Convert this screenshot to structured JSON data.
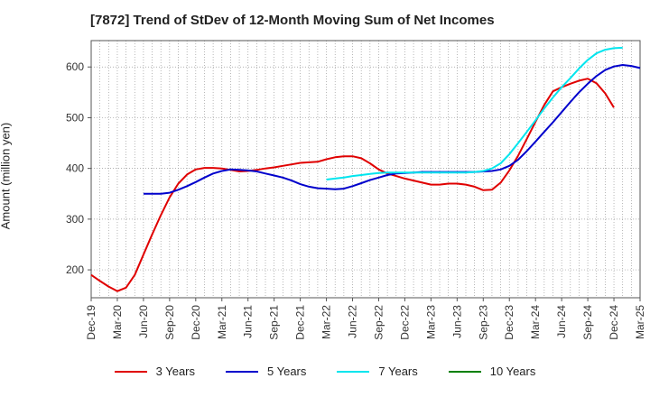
{
  "chart_data": {
    "type": "line",
    "title": "[7872]  Trend of StDev of 12-Month Moving Sum of Net Incomes",
    "ylabel": "Amount (million yen)",
    "xlabel": "",
    "ylim": [
      145,
      652
    ],
    "yticks": [
      200,
      300,
      400,
      500,
      600
    ],
    "x_tick_labels": [
      "Dec-19",
      "Mar-20",
      "Jun-20",
      "Sep-20",
      "Dec-20",
      "Mar-21",
      "Jun-21",
      "Sep-21",
      "Dec-21",
      "Mar-22",
      "Jun-22",
      "Sep-22",
      "Dec-22",
      "Mar-23",
      "Jun-23",
      "Sep-23",
      "Dec-23",
      "Mar-24",
      "Jun-24",
      "Sep-24",
      "Dec-24",
      "Mar-25"
    ],
    "grid": true,
    "legend_position": "bottom",
    "series": [
      {
        "name": "3 Years",
        "color": "#e00000",
        "points": [
          [
            0,
            190
          ],
          [
            1,
            178
          ],
          [
            2,
            167
          ],
          [
            3,
            158
          ],
          [
            4,
            165
          ],
          [
            5,
            190
          ],
          [
            6,
            230
          ],
          [
            7,
            270
          ],
          [
            8,
            308
          ],
          [
            9,
            343
          ],
          [
            10,
            370
          ],
          [
            11,
            388
          ],
          [
            12,
            398
          ],
          [
            13,
            401
          ],
          [
            14,
            401
          ],
          [
            15,
            400
          ],
          [
            16,
            397
          ],
          [
            17,
            394
          ],
          [
            18,
            395
          ],
          [
            19,
            397
          ],
          [
            20,
            400
          ],
          [
            21,
            402
          ],
          [
            22,
            405
          ],
          [
            23,
            408
          ],
          [
            24,
            411
          ],
          [
            25,
            412
          ],
          [
            26,
            413
          ],
          [
            27,
            418
          ],
          [
            28,
            422
          ],
          [
            29,
            424
          ],
          [
            30,
            424
          ],
          [
            31,
            420
          ],
          [
            32,
            410
          ],
          [
            33,
            398
          ],
          [
            34,
            390
          ],
          [
            35,
            385
          ],
          [
            36,
            380
          ],
          [
            37,
            376
          ],
          [
            38,
            372
          ],
          [
            39,
            368
          ],
          [
            40,
            368
          ],
          [
            41,
            370
          ],
          [
            42,
            370
          ],
          [
            43,
            368
          ],
          [
            44,
            364
          ],
          [
            45,
            357
          ],
          [
            46,
            358
          ],
          [
            47,
            372
          ],
          [
            48,
            396
          ],
          [
            49,
            425
          ],
          [
            50,
            458
          ],
          [
            51,
            492
          ],
          [
            52,
            525
          ],
          [
            53,
            552
          ],
          [
            54,
            560
          ],
          [
            55,
            567
          ],
          [
            56,
            573
          ],
          [
            57,
            577
          ],
          [
            58,
            568
          ],
          [
            59,
            548
          ],
          [
            60,
            520
          ]
        ]
      },
      {
        "name": "5 Years",
        "color": "#0000cc",
        "points": [
          [
            6,
            350
          ],
          [
            7,
            350
          ],
          [
            8,
            350
          ],
          [
            9,
            352
          ],
          [
            10,
            358
          ],
          [
            11,
            365
          ],
          [
            12,
            373
          ],
          [
            13,
            382
          ],
          [
            14,
            390
          ],
          [
            15,
            395
          ],
          [
            16,
            398
          ],
          [
            17,
            397
          ],
          [
            18,
            396
          ],
          [
            19,
            394
          ],
          [
            20,
            390
          ],
          [
            21,
            386
          ],
          [
            22,
            382
          ],
          [
            23,
            376
          ],
          [
            24,
            369
          ],
          [
            25,
            364
          ],
          [
            26,
            361
          ],
          [
            27,
            360
          ],
          [
            28,
            359
          ],
          [
            29,
            360
          ],
          [
            30,
            365
          ],
          [
            31,
            371
          ],
          [
            32,
            377
          ],
          [
            33,
            382
          ],
          [
            34,
            387
          ],
          [
            35,
            390
          ],
          [
            36,
            391
          ],
          [
            37,
            392
          ],
          [
            38,
            393
          ],
          [
            39,
            393
          ],
          [
            40,
            393
          ],
          [
            41,
            393
          ],
          [
            42,
            393
          ],
          [
            43,
            393
          ],
          [
            44,
            393
          ],
          [
            45,
            394
          ],
          [
            46,
            395
          ],
          [
            47,
            398
          ],
          [
            48,
            405
          ],
          [
            49,
            417
          ],
          [
            50,
            434
          ],
          [
            51,
            453
          ],
          [
            52,
            472
          ],
          [
            53,
            491
          ],
          [
            54,
            511
          ],
          [
            55,
            531
          ],
          [
            56,
            550
          ],
          [
            57,
            567
          ],
          [
            58,
            582
          ],
          [
            59,
            594
          ],
          [
            60,
            601
          ],
          [
            61,
            604
          ],
          [
            62,
            602
          ],
          [
            63,
            598
          ]
        ]
      },
      {
        "name": "7 Years",
        "color": "#00e5ee",
        "points": [
          [
            27,
            378
          ],
          [
            28,
            380
          ],
          [
            29,
            382
          ],
          [
            30,
            385
          ],
          [
            31,
            387
          ],
          [
            32,
            389
          ],
          [
            33,
            391
          ],
          [
            34,
            392
          ],
          [
            35,
            392
          ],
          [
            36,
            392
          ],
          [
            37,
            392
          ],
          [
            38,
            392
          ],
          [
            39,
            392
          ],
          [
            40,
            392
          ],
          [
            41,
            392
          ],
          [
            42,
            392
          ],
          [
            43,
            392
          ],
          [
            44,
            393
          ],
          [
            45,
            395
          ],
          [
            46,
            400
          ],
          [
            47,
            410
          ],
          [
            48,
            428
          ],
          [
            49,
            450
          ],
          [
            50,
            472
          ],
          [
            51,
            495
          ],
          [
            52,
            518
          ],
          [
            53,
            540
          ],
          [
            54,
            560
          ],
          [
            55,
            578
          ],
          [
            56,
            597
          ],
          [
            57,
            614
          ],
          [
            58,
            627
          ],
          [
            59,
            634
          ],
          [
            60,
            637
          ],
          [
            61,
            638
          ]
        ]
      },
      {
        "name": "10 Years",
        "color": "#008000",
        "points": []
      }
    ]
  }
}
